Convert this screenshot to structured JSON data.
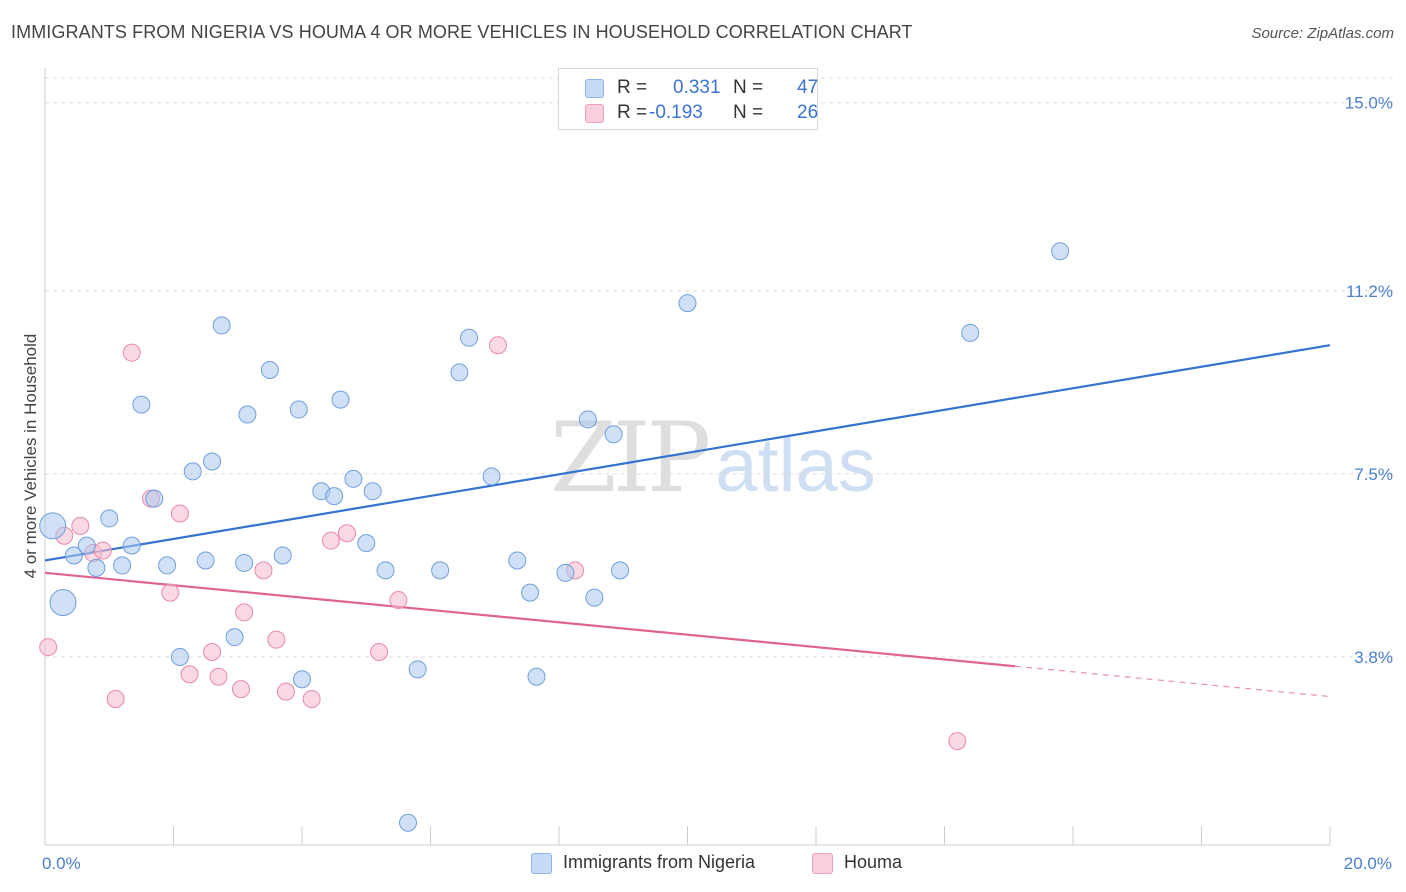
{
  "header": {
    "title": "IMMIGRANTS FROM NIGERIA VS HOUMA 4 OR MORE VEHICLES IN HOUSEHOLD CORRELATION CHART",
    "source": "Source: ZipAtlas.com"
  },
  "watermark": {
    "zip": "ZIP",
    "atlas": "atlas"
  },
  "legend": {
    "rows": [
      {
        "r_label": "R =",
        "r_value": "0.331",
        "n_label": "N =",
        "n_value": "47",
        "color": "#a9c8f0"
      },
      {
        "r_label": "R =",
        "r_value": "-0.193",
        "n_label": "N =",
        "n_value": "26",
        "color": "#f6b9cb"
      }
    ]
  },
  "chart_data": {
    "type": "scatter",
    "title": "IMMIGRANTS FROM NIGERIA VS HOUMA 4 OR MORE VEHICLES IN HOUSEHOLD CORRELATION CHART",
    "xlabel": "",
    "ylabel": "4 or more Vehicles in Household",
    "xlim": [
      0,
      20
    ],
    "ylim": [
      0,
      15.5
    ],
    "x_tick_labels": [
      {
        "value": 0,
        "label": "0.0%"
      },
      {
        "value": 20,
        "label": "20.0%"
      }
    ],
    "y_tick_labels": [
      {
        "value": 3.8,
        "label": "3.8%"
      },
      {
        "value": 7.5,
        "label": "7.5%"
      },
      {
        "value": 11.2,
        "label": "11.2%"
      },
      {
        "value": 15.0,
        "label": "15.0%"
      }
    ],
    "legend_position": "bottom",
    "series": [
      {
        "name": "Immigrants from Nigeria",
        "color": "#a9c8f0",
        "stroke": "#6f9fdc",
        "trend": {
          "x0": 0,
          "y0": 5.75,
          "x1": 20,
          "y1": 10.1,
          "solid_until": 20,
          "color": "#3473d0"
        },
        "points": [
          {
            "x": 0.12,
            "y": 6.45,
            "big": true
          },
          {
            "x": 0.28,
            "y": 4.9,
            "big": true
          },
          {
            "x": 0.45,
            "y": 5.85
          },
          {
            "x": 0.65,
            "y": 6.05
          },
          {
            "x": 0.8,
            "y": 5.6
          },
          {
            "x": 1.0,
            "y": 6.6
          },
          {
            "x": 1.2,
            "y": 5.65
          },
          {
            "x": 1.35,
            "y": 6.05
          },
          {
            "x": 1.5,
            "y": 8.9
          },
          {
            "x": 1.7,
            "y": 7.0
          },
          {
            "x": 1.9,
            "y": 5.65
          },
          {
            "x": 2.1,
            "y": 3.8
          },
          {
            "x": 2.3,
            "y": 7.55
          },
          {
            "x": 2.5,
            "y": 5.75
          },
          {
            "x": 2.6,
            "y": 7.75
          },
          {
            "x": 2.75,
            "y": 10.5
          },
          {
            "x": 2.95,
            "y": 4.2
          },
          {
            "x": 3.15,
            "y": 8.7
          },
          {
            "x": 3.1,
            "y": 5.7
          },
          {
            "x": 3.5,
            "y": 9.6
          },
          {
            "x": 3.7,
            "y": 5.85
          },
          {
            "x": 3.95,
            "y": 8.8
          },
          {
            "x": 4.0,
            "y": 3.35
          },
          {
            "x": 4.3,
            "y": 7.15
          },
          {
            "x": 4.5,
            "y": 7.05
          },
          {
            "x": 4.6,
            "y": 9.0
          },
          {
            "x": 4.8,
            "y": 7.4
          },
          {
            "x": 5.0,
            "y": 6.1
          },
          {
            "x": 5.1,
            "y": 7.15
          },
          {
            "x": 5.3,
            "y": 5.55
          },
          {
            "x": 5.8,
            "y": 3.55
          },
          {
            "x": 5.65,
            "y": 0.45
          },
          {
            "x": 6.15,
            "y": 5.55
          },
          {
            "x": 6.45,
            "y": 9.55
          },
          {
            "x": 6.6,
            "y": 10.25
          },
          {
            "x": 6.95,
            "y": 7.45
          },
          {
            "x": 7.35,
            "y": 5.75
          },
          {
            "x": 7.55,
            "y": 5.1
          },
          {
            "x": 7.65,
            "y": 3.4
          },
          {
            "x": 8.1,
            "y": 5.5
          },
          {
            "x": 8.45,
            "y": 8.6
          },
          {
            "x": 8.55,
            "y": 5.0
          },
          {
            "x": 8.85,
            "y": 8.3
          },
          {
            "x": 8.95,
            "y": 5.55
          },
          {
            "x": 10.0,
            "y": 10.95
          },
          {
            "x": 14.4,
            "y": 10.35
          },
          {
            "x": 15.8,
            "y": 12.0
          }
        ]
      },
      {
        "name": "Houma",
        "color": "#f6b9cb",
        "stroke": "#e88aa6",
        "trend": {
          "x0": 0,
          "y0": 5.5,
          "x1": 20,
          "y1": 3.0,
          "solid_until": 15.1,
          "color": "#e0648f"
        },
        "points": [
          {
            "x": 0.05,
            "y": 4.0
          },
          {
            "x": 0.3,
            "y": 6.25
          },
          {
            "x": 0.55,
            "y": 6.45
          },
          {
            "x": 0.75,
            "y": 5.9
          },
          {
            "x": 0.9,
            "y": 5.95
          },
          {
            "x": 1.1,
            "y": 2.95
          },
          {
            "x": 1.35,
            "y": 9.95
          },
          {
            "x": 1.65,
            "y": 7.0
          },
          {
            "x": 1.95,
            "y": 5.1
          },
          {
            "x": 2.1,
            "y": 6.7
          },
          {
            "x": 2.25,
            "y": 3.45
          },
          {
            "x": 2.6,
            "y": 3.9
          },
          {
            "x": 2.7,
            "y": 3.4
          },
          {
            "x": 3.05,
            "y": 3.15
          },
          {
            "x": 3.1,
            "y": 4.7
          },
          {
            "x": 3.4,
            "y": 5.55
          },
          {
            "x": 3.6,
            "y": 4.15
          },
          {
            "x": 3.75,
            "y": 3.1
          },
          {
            "x": 4.15,
            "y": 2.95
          },
          {
            "x": 4.45,
            "y": 6.15
          },
          {
            "x": 4.7,
            "y": 6.3
          },
          {
            "x": 5.2,
            "y": 3.9
          },
          {
            "x": 5.5,
            "y": 4.95
          },
          {
            "x": 7.05,
            "y": 10.1
          },
          {
            "x": 8.25,
            "y": 5.55
          },
          {
            "x": 14.2,
            "y": 2.1
          }
        ]
      }
    ]
  }
}
